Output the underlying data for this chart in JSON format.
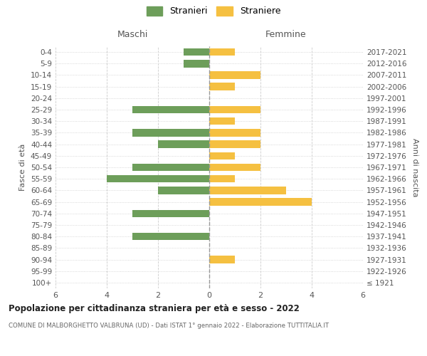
{
  "age_groups": [
    "100+",
    "95-99",
    "90-94",
    "85-89",
    "80-84",
    "75-79",
    "70-74",
    "65-69",
    "60-64",
    "55-59",
    "50-54",
    "45-49",
    "40-44",
    "35-39",
    "30-34",
    "25-29",
    "20-24",
    "15-19",
    "10-14",
    "5-9",
    "0-4"
  ],
  "birth_years": [
    "≤ 1921",
    "1922-1926",
    "1927-1931",
    "1932-1936",
    "1937-1941",
    "1942-1946",
    "1947-1951",
    "1952-1956",
    "1957-1961",
    "1962-1966",
    "1967-1971",
    "1972-1976",
    "1977-1981",
    "1982-1986",
    "1987-1991",
    "1992-1996",
    "1997-2001",
    "2002-2006",
    "2007-2011",
    "2012-2016",
    "2017-2021"
  ],
  "maschi": [
    0,
    0,
    0,
    0,
    3,
    0,
    3,
    0,
    2,
    4,
    3,
    0,
    2,
    3,
    0,
    3,
    0,
    0,
    0,
    1,
    1
  ],
  "femmine": [
    0,
    0,
    1,
    0,
    0,
    0,
    0,
    4,
    3,
    1,
    2,
    1,
    2,
    2,
    1,
    2,
    0,
    1,
    2,
    0,
    1
  ],
  "color_maschi": "#6d9e5a",
  "color_femmine": "#f5c041",
  "title": "Popolazione per cittadinanza straniera per età e sesso - 2022",
  "subtitle": "COMUNE DI MALBORGHETTO VALBRUNA (UD) - Dati ISTAT 1° gennaio 2022 - Elaborazione TUTTITALIA.IT",
  "xlabel_left": "Maschi",
  "xlabel_right": "Femmine",
  "ylabel_left": "Fasce di età",
  "ylabel_right": "Anni di nascita",
  "legend_maschi": "Stranieri",
  "legend_femmine": "Straniere",
  "xlim": 6,
  "background_color": "#ffffff",
  "grid_color": "#cccccc"
}
